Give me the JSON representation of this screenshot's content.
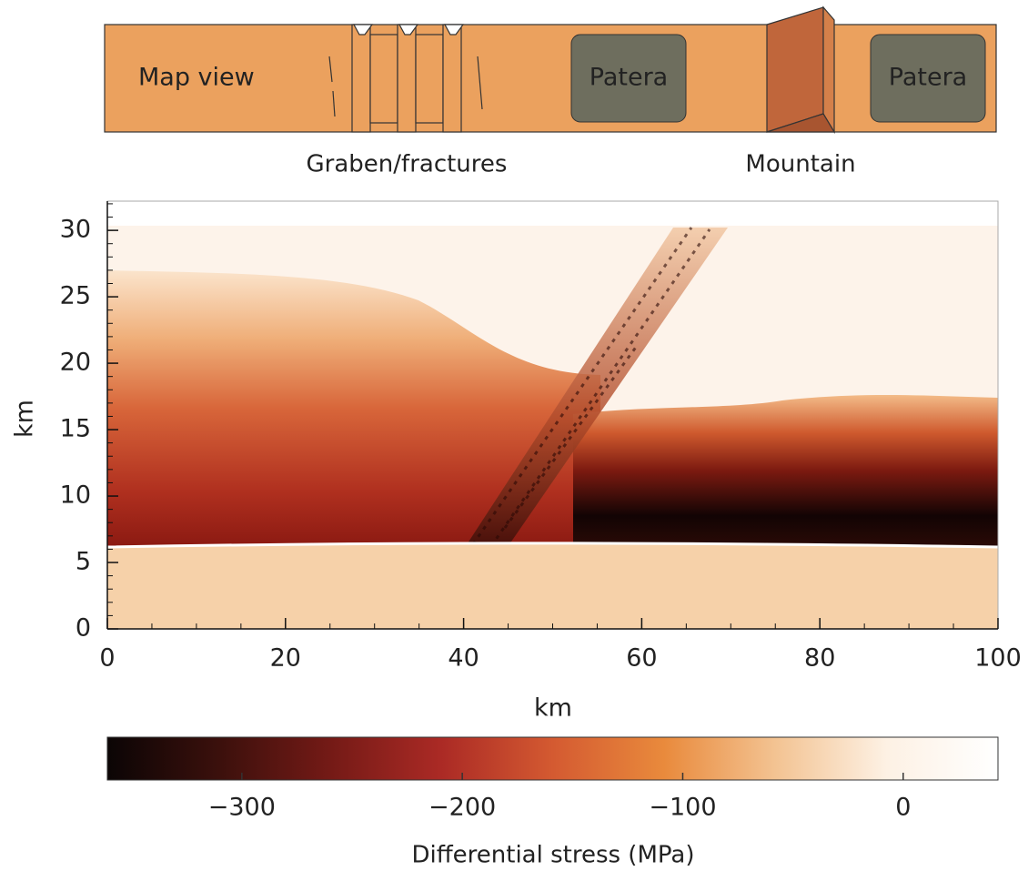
{
  "map_view": {
    "title": "Map view",
    "patera": [
      "Patera",
      "Patera"
    ],
    "graben_label": "Graben/fractures",
    "mountain_label": "Mountain"
  },
  "chart_data": {
    "type": "heatmap",
    "xlabel": "km",
    "ylabel": "km",
    "xlim": [
      0,
      100
    ],
    "ylim": [
      0,
      32.2
    ],
    "xticks": [
      0,
      20,
      40,
      60,
      80,
      100
    ],
    "yticks": [
      0,
      5,
      10,
      15,
      20,
      25,
      30
    ],
    "x_minor_step": 5,
    "y_minor_step": 1,
    "colorbar": {
      "label": "Differential stress (MPa)",
      "lim": [
        -361,
        43
      ],
      "ticks": [
        {
          "value": -300,
          "label": "−300"
        },
        {
          "value": -200,
          "label": "−200"
        },
        {
          "value": -100,
          "label": "−100"
        },
        0
      ],
      "colormap": [
        "#0b0505",
        "#3b100c",
        "#741a16",
        "#ab2a25",
        "#d45a31",
        "#e98a3c",
        "#f3c392",
        "#fdf1e4",
        "#ffffff"
      ]
    }
  }
}
